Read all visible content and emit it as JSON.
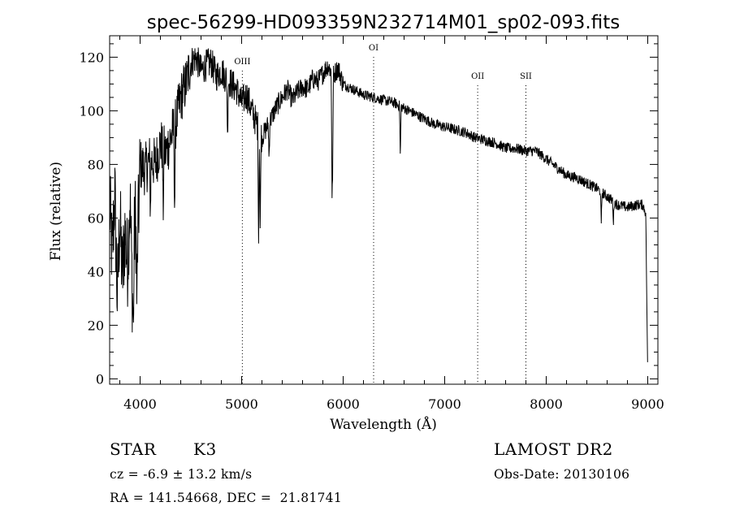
{
  "chart_data": {
    "type": "line",
    "title": "spec-56299-HD093359N232714M01_sp02-093.fits",
    "xlabel": "Wavelength (Å)",
    "ylabel": "Flux (relative)",
    "xlim": [
      3700,
      9100
    ],
    "ylim": [
      -2,
      128
    ],
    "xticks": [
      4000,
      5000,
      6000,
      7000,
      8000,
      9000
    ],
    "yticks": [
      0,
      20,
      40,
      60,
      80,
      100,
      120
    ],
    "grid": false,
    "series": [
      {
        "x": [
          3700,
          3725,
          3750,
          3775,
          3800,
          3825,
          3850,
          3875,
          3900,
          3925,
          3950,
          3975,
          4000,
          4050,
          4100,
          4150,
          4200,
          4250,
          4300,
          4350,
          4400,
          4450,
          4500,
          4550,
          4600,
          4650,
          4700,
          4750,
          4800,
          4850,
          4900,
          4950,
          5000,
          5050,
          5100,
          5150,
          5200,
          5250,
          5300,
          5350,
          5400,
          5450,
          5500,
          5550,
          5600,
          5650,
          5700,
          5750,
          5800,
          5850,
          5900,
          5950,
          6000,
          6100,
          6200,
          6300,
          6400,
          6500,
          6600,
          6700,
          6800,
          6900,
          7000,
          7100,
          7200,
          7300,
          7400,
          7500,
          7600,
          7700,
          7800,
          7900,
          8000,
          8100,
          8200,
          8300,
          8400,
          8500,
          8600,
          8700,
          8800,
          8900,
          8950,
          8980,
          9000
        ],
        "values": [
          65,
          45,
          70,
          30,
          60,
          38,
          55,
          42,
          68,
          30,
          60,
          50,
          80,
          78,
          82,
          80,
          88,
          84,
          90,
          95,
          105,
          110,
          118,
          120,
          115,
          117,
          118,
          113,
          115,
          112,
          110,
          108,
          103,
          106,
          100,
          95,
          90,
          94,
          98,
          102,
          105,
          108,
          104,
          107,
          109,
          108,
          112,
          111,
          114,
          117,
          113,
          116,
          110,
          108,
          106,
          105,
          104,
          103,
          101,
          99,
          97,
          95,
          94,
          93,
          92,
          90,
          89,
          88,
          86,
          86,
          85,
          85,
          82,
          79,
          76,
          75,
          73,
          71,
          68,
          65,
          64,
          65,
          65,
          62,
          0
        ],
        "color": "#000000"
      }
    ],
    "lines": [
      {
        "label": "OIII",
        "x": 5007
      },
      {
        "label": "OI",
        "x": 6300
      },
      {
        "label": "OII",
        "x": 7325
      },
      {
        "label": "SII",
        "x": 7800
      }
    ]
  },
  "info": {
    "object_class": "STAR",
    "subclass": "K3",
    "survey": "LAMOST DR2",
    "velocity": "cz = -6.9 ± 13.2 km/s",
    "obs_date": "Obs-Date: 20130106",
    "coords": "RA = 141.54668, DEC =  21.81741"
  }
}
